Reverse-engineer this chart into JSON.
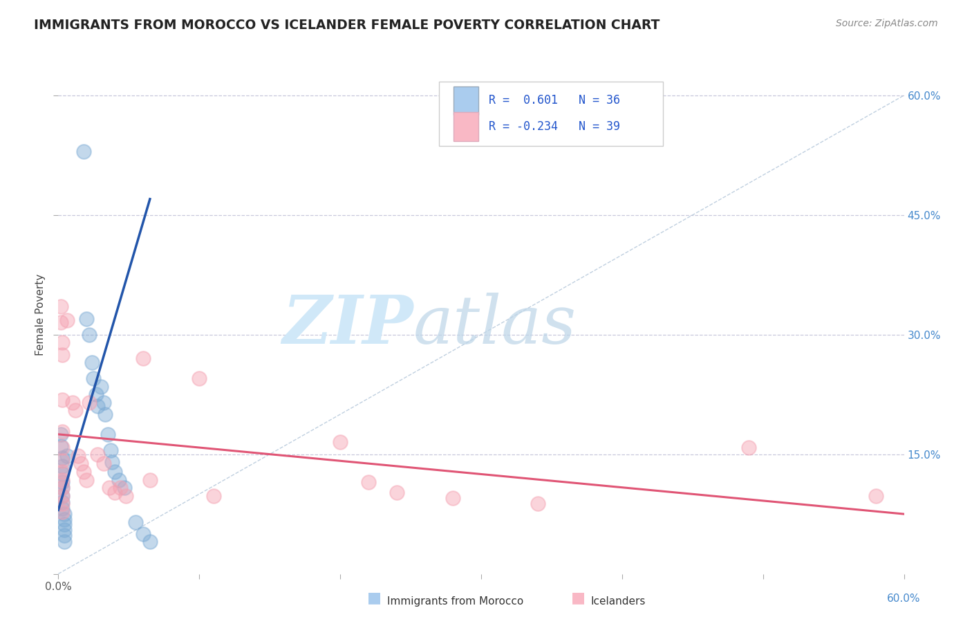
{
  "title": "IMMIGRANTS FROM MOROCCO VS ICELANDER FEMALE POVERTY CORRELATION CHART",
  "source": "Source: ZipAtlas.com",
  "ylabel": "Female Poverty",
  "xlim": [
    0.0,
    0.6
  ],
  "ylim": [
    0.0,
    0.65
  ],
  "blue_color": "#7BAAD4",
  "pink_color": "#F4A0B0",
  "blue_line_color": "#2255AA",
  "pink_line_color": "#E05575",
  "diag_color": "#B0C4D8",
  "grid_color": "#C8C8DC",
  "background_color": "#FFFFFF",
  "legend_box_color_1": "#AACCEE",
  "legend_box_color_2": "#F9B8C5",
  "blue_scatter": [
    [
      0.002,
      0.175
    ],
    [
      0.002,
      0.16
    ],
    [
      0.003,
      0.145
    ],
    [
      0.003,
      0.135
    ],
    [
      0.003,
      0.125
    ],
    [
      0.003,
      0.115
    ],
    [
      0.003,
      0.108
    ],
    [
      0.003,
      0.098
    ],
    [
      0.003,
      0.09
    ],
    [
      0.003,
      0.082
    ],
    [
      0.004,
      0.075
    ],
    [
      0.004,
      0.068
    ],
    [
      0.004,
      0.062
    ],
    [
      0.004,
      0.055
    ],
    [
      0.004,
      0.048
    ],
    [
      0.004,
      0.04
    ],
    [
      0.006,
      0.148
    ],
    [
      0.018,
      0.53
    ],
    [
      0.02,
      0.32
    ],
    [
      0.022,
      0.3
    ],
    [
      0.024,
      0.265
    ],
    [
      0.025,
      0.245
    ],
    [
      0.027,
      0.225
    ],
    [
      0.028,
      0.21
    ],
    [
      0.03,
      0.235
    ],
    [
      0.032,
      0.215
    ],
    [
      0.033,
      0.2
    ],
    [
      0.035,
      0.175
    ],
    [
      0.037,
      0.155
    ],
    [
      0.038,
      0.14
    ],
    [
      0.04,
      0.128
    ],
    [
      0.043,
      0.118
    ],
    [
      0.047,
      0.108
    ],
    [
      0.055,
      0.065
    ],
    [
      0.06,
      0.05
    ],
    [
      0.065,
      0.04
    ]
  ],
  "pink_scatter": [
    [
      0.002,
      0.335
    ],
    [
      0.002,
      0.315
    ],
    [
      0.003,
      0.29
    ],
    [
      0.003,
      0.275
    ],
    [
      0.003,
      0.218
    ],
    [
      0.003,
      0.178
    ],
    [
      0.003,
      0.158
    ],
    [
      0.003,
      0.142
    ],
    [
      0.003,
      0.128
    ],
    [
      0.003,
      0.118
    ],
    [
      0.003,
      0.108
    ],
    [
      0.003,
      0.098
    ],
    [
      0.003,
      0.088
    ],
    [
      0.003,
      0.078
    ],
    [
      0.006,
      0.318
    ],
    [
      0.01,
      0.215
    ],
    [
      0.012,
      0.205
    ],
    [
      0.014,
      0.148
    ],
    [
      0.016,
      0.138
    ],
    [
      0.018,
      0.128
    ],
    [
      0.02,
      0.118
    ],
    [
      0.022,
      0.215
    ],
    [
      0.028,
      0.15
    ],
    [
      0.032,
      0.138
    ],
    [
      0.036,
      0.108
    ],
    [
      0.04,
      0.102
    ],
    [
      0.044,
      0.108
    ],
    [
      0.048,
      0.098
    ],
    [
      0.06,
      0.27
    ],
    [
      0.065,
      0.118
    ],
    [
      0.1,
      0.245
    ],
    [
      0.11,
      0.098
    ],
    [
      0.2,
      0.165
    ],
    [
      0.22,
      0.115
    ],
    [
      0.24,
      0.102
    ],
    [
      0.28,
      0.095
    ],
    [
      0.34,
      0.088
    ],
    [
      0.49,
      0.158
    ],
    [
      0.58,
      0.098
    ]
  ],
  "blue_trend_x": [
    0.0,
    0.065
  ],
  "blue_trend_y": [
    0.08,
    0.47
  ],
  "pink_trend_x": [
    0.0,
    0.6
  ],
  "pink_trend_y": [
    0.175,
    0.075
  ]
}
